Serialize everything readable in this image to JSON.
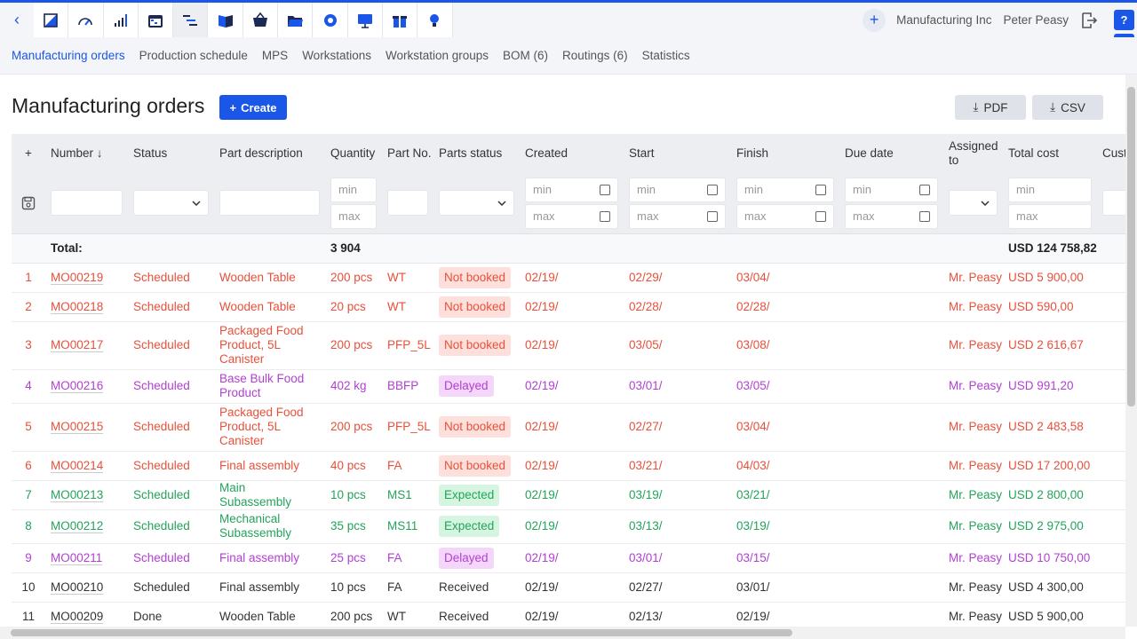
{
  "topbar": {
    "back_icon": "chevron-left-icon",
    "apps": [
      "sales-icon",
      "dashboard-icon",
      "stats-icon",
      "calendar-icon",
      "production-icon",
      "book-icon",
      "basket-icon",
      "folder-icon",
      "settings-icon",
      "presentation-icon",
      "gift-icon",
      "idea-icon"
    ],
    "company": "Manufacturing Inc",
    "user": "Peter Peasy"
  },
  "subnav": [
    {
      "label": "Manufacturing orders",
      "active": true
    },
    {
      "label": "Production schedule",
      "active": false
    },
    {
      "label": "MPS",
      "active": false
    },
    {
      "label": "Workstations",
      "active": false
    },
    {
      "label": "Workstation groups",
      "active": false
    },
    {
      "label": "BOM (6)",
      "active": false
    },
    {
      "label": "Routings (6)",
      "active": false
    },
    {
      "label": "Statistics",
      "active": false
    }
  ],
  "page": {
    "title": "Manufacturing orders",
    "create_label": "Create",
    "pdf_label": "PDF",
    "csv_label": "CSV"
  },
  "table": {
    "headers": {
      "number": "Number",
      "status": "Status",
      "part_description": "Part description",
      "quantity": "Quantity",
      "part_no": "Part No.",
      "parts_status": "Parts status",
      "created": "Created",
      "start": "Start",
      "finish": "Finish",
      "due_date": "Due date",
      "assigned_to": "Assigned to",
      "total_cost": "Total cost",
      "customer_order": "Cust orde"
    },
    "filter": {
      "min": "min",
      "max": "max"
    },
    "total": {
      "label": "Total:",
      "quantity": "3 904",
      "total_cost": "USD 124 758,82"
    },
    "rows": [
      {
        "n": "1",
        "number": "MO00219",
        "status": "Scheduled",
        "desc": "Wooden Table",
        "qty": "200 pcs",
        "part_no": "WT",
        "parts_status": "Not booked",
        "created": "02/19/",
        "start": "02/29/",
        "finish": "03/04/",
        "due": "",
        "assigned": "Mr. Peasy",
        "cost": "USD 5 900,00",
        "color": "red"
      },
      {
        "n": "2",
        "number": "MO00218",
        "status": "Scheduled",
        "desc": "Wooden Table",
        "qty": "20 pcs",
        "part_no": "WT",
        "parts_status": "Not booked",
        "created": "02/19/",
        "start": "02/28/",
        "finish": "02/28/",
        "due": "",
        "assigned": "Mr. Peasy",
        "cost": "USD 590,00",
        "color": "red"
      },
      {
        "n": "3",
        "number": "MO00217",
        "status": "Scheduled",
        "desc": "Packaged Food Product, 5L Canister",
        "qty": "200 pcs",
        "part_no": "PFP_5L",
        "parts_status": "Not booked",
        "created": "02/19/",
        "start": "03/05/",
        "finish": "03/08/",
        "due": "",
        "assigned": "Mr. Peasy",
        "cost": "USD 2 616,67",
        "color": "red"
      },
      {
        "n": "4",
        "number": "MO00216",
        "status": "Scheduled",
        "desc": "Base Bulk Food Product",
        "qty": "402 kg",
        "part_no": "BBFP",
        "parts_status": "Delayed",
        "created": "02/19/",
        "start": "03/01/",
        "finish": "03/05/",
        "due": "",
        "assigned": "Mr. Peasy",
        "cost": "USD 991,20",
        "color": "purple"
      },
      {
        "n": "5",
        "number": "MO00215",
        "status": "Scheduled",
        "desc": "Packaged Food Product, 5L Canister",
        "qty": "200 pcs",
        "part_no": "PFP_5L",
        "parts_status": "Not booked",
        "created": "02/19/",
        "start": "02/27/",
        "finish": "03/04/",
        "due": "",
        "assigned": "Mr. Peasy",
        "cost": "USD 2 483,58",
        "color": "red"
      },
      {
        "n": "6",
        "number": "MO00214",
        "status": "Scheduled",
        "desc": "Final assembly",
        "qty": "40 pcs",
        "part_no": "FA",
        "parts_status": "Not booked",
        "created": "02/19/",
        "start": "03/21/",
        "finish": "04/03/",
        "due": "",
        "assigned": "Mr. Peasy",
        "cost": "USD 17 200,00",
        "color": "red"
      },
      {
        "n": "7",
        "number": "MO00213",
        "status": "Scheduled",
        "desc": "Main Subassembly",
        "qty": "10 pcs",
        "part_no": "MS1",
        "parts_status": "Expected",
        "created": "02/19/",
        "start": "03/19/",
        "finish": "03/21/",
        "due": "",
        "assigned": "Mr. Peasy",
        "cost": "USD 2 800,00",
        "color": "green"
      },
      {
        "n": "8",
        "number": "MO00212",
        "status": "Scheduled",
        "desc": "Mechanical Subassembly",
        "qty": "35 pcs",
        "part_no": "MS11",
        "parts_status": "Expected",
        "created": "02/19/",
        "start": "03/13/",
        "finish": "03/19/",
        "due": "",
        "assigned": "Mr. Peasy",
        "cost": "USD 2 975,00",
        "color": "green"
      },
      {
        "n": "9",
        "number": "MO00211",
        "status": "Scheduled",
        "desc": "Final assembly",
        "qty": "25 pcs",
        "part_no": "FA",
        "parts_status": "Delayed",
        "created": "02/19/",
        "start": "03/01/",
        "finish": "03/15/",
        "due": "",
        "assigned": "Mr. Peasy",
        "cost": "USD 10 750,00",
        "color": "purple"
      },
      {
        "n": "10",
        "number": "MO00210",
        "status": "Scheduled",
        "desc": "Final assembly",
        "qty": "10 pcs",
        "part_no": "FA",
        "parts_status": "Received",
        "created": "02/19/",
        "start": "02/27/",
        "finish": "03/01/",
        "due": "",
        "assigned": "Mr. Peasy",
        "cost": "USD 4 300,00",
        "color": "dark"
      },
      {
        "n": "11",
        "number": "MO00209",
        "status": "Done",
        "desc": "Wooden Table",
        "qty": "200 pcs",
        "part_no": "WT",
        "parts_status": "Received",
        "created": "02/19/",
        "start": "02/13/",
        "finish": "02/19/",
        "due": "",
        "assigned": "Mr. Peasy",
        "cost": "USD 5 900,00",
        "color": "dark"
      }
    ]
  },
  "colors": {
    "accent": "#1a56e8",
    "red": "#e8503a",
    "purple": "#b23fd3",
    "green": "#23a35a"
  }
}
